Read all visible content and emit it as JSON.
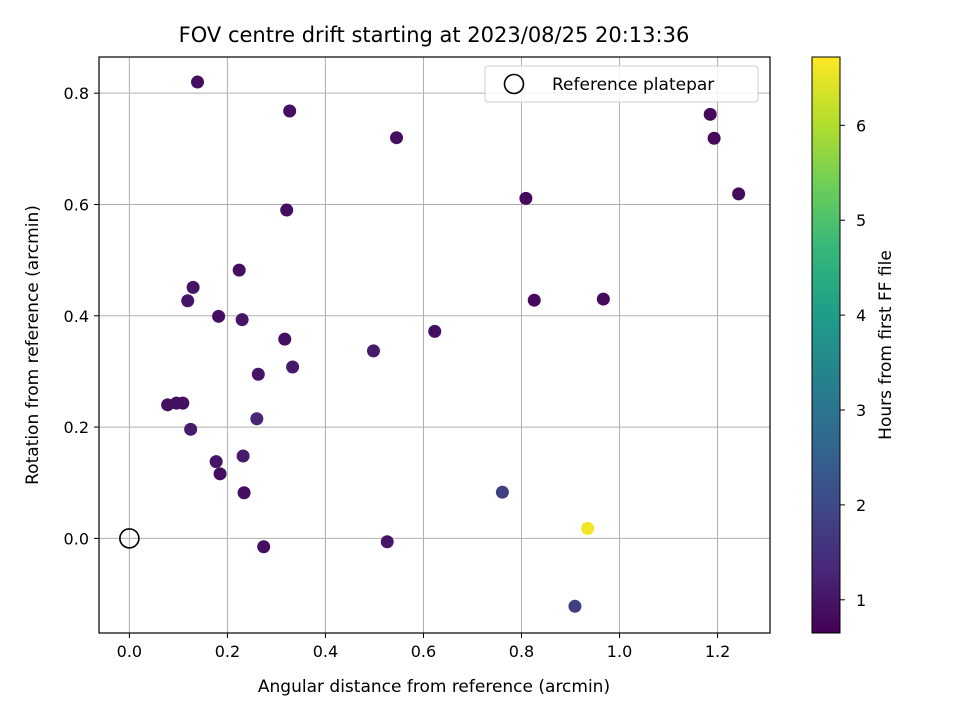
{
  "chart_data": {
    "type": "scatter",
    "title": "FOV centre drift starting at 2023/08/25 20:13:36",
    "xlabel": "Angular distance from reference (arcmin)",
    "ylabel": "Rotation from reference (arcmin)",
    "xlim": [
      -0.062,
      1.307
    ],
    "ylim": [
      -0.17,
      0.865
    ],
    "x_ticks": [
      0.0,
      0.2,
      0.4,
      0.6,
      0.8,
      1.0,
      1.2
    ],
    "x_tick_labels": [
      "0.0",
      "0.2",
      "0.4",
      "0.6",
      "0.8",
      "1.0",
      "1.2"
    ],
    "y_ticks": [
      0.0,
      0.2,
      0.4,
      0.6,
      0.8
    ],
    "y_tick_labels": [
      "0.0",
      "0.2",
      "0.4",
      "0.6",
      "0.8"
    ],
    "grid": true,
    "legend": {
      "placement": "top-right",
      "entries": [
        {
          "label": "Reference platepar",
          "marker": "open-circle"
        }
      ]
    },
    "reference_point": {
      "x": 0.0,
      "y": 0.0
    },
    "colorbar": {
      "label": "Hours from first FF file",
      "colormap": "viridis",
      "range": [
        0.65,
        6.72
      ],
      "ticks": [
        1,
        2,
        3,
        4,
        5,
        6
      ],
      "tick_labels": [
        "1",
        "2",
        "3",
        "4",
        "5",
        "6"
      ],
      "colors": [
        "#440154",
        "#482878",
        "#3e4989",
        "#31688e",
        "#26828e",
        "#1f9e89",
        "#35b779",
        "#6ece58",
        "#b5de2b",
        "#fde725"
      ]
    },
    "points": [
      {
        "x": 0.139,
        "y": 0.82,
        "hours": 0.9
      },
      {
        "x": 0.327,
        "y": 0.768,
        "hours": 0.9
      },
      {
        "x": 0.545,
        "y": 0.72,
        "hours": 0.9
      },
      {
        "x": 1.185,
        "y": 0.762,
        "hours": 0.8
      },
      {
        "x": 1.193,
        "y": 0.719,
        "hours": 0.8
      },
      {
        "x": 1.243,
        "y": 0.619,
        "hours": 0.8
      },
      {
        "x": 0.321,
        "y": 0.59,
        "hours": 0.9
      },
      {
        "x": 0.809,
        "y": 0.611,
        "hours": 0.8
      },
      {
        "x": 0.224,
        "y": 0.482,
        "hours": 0.9
      },
      {
        "x": 0.13,
        "y": 0.451,
        "hours": 1.0
      },
      {
        "x": 0.119,
        "y": 0.427,
        "hours": 1.0
      },
      {
        "x": 0.826,
        "y": 0.428,
        "hours": 0.8
      },
      {
        "x": 0.967,
        "y": 0.43,
        "hours": 0.8
      },
      {
        "x": 0.182,
        "y": 0.399,
        "hours": 0.9
      },
      {
        "x": 0.23,
        "y": 0.393,
        "hours": 1.0
      },
      {
        "x": 0.623,
        "y": 0.372,
        "hours": 0.9
      },
      {
        "x": 0.317,
        "y": 0.358,
        "hours": 0.9
      },
      {
        "x": 0.498,
        "y": 0.337,
        "hours": 1.1
      },
      {
        "x": 0.333,
        "y": 0.308,
        "hours": 1.1
      },
      {
        "x": 0.263,
        "y": 0.295,
        "hours": 1.0
      },
      {
        "x": 0.078,
        "y": 0.24,
        "hours": 0.9
      },
      {
        "x": 0.096,
        "y": 0.243,
        "hours": 0.9
      },
      {
        "x": 0.109,
        "y": 0.243,
        "hours": 0.9
      },
      {
        "x": 0.26,
        "y": 0.215,
        "hours": 1.3
      },
      {
        "x": 0.125,
        "y": 0.196,
        "hours": 1.1
      },
      {
        "x": 0.232,
        "y": 0.148,
        "hours": 1.1
      },
      {
        "x": 0.177,
        "y": 0.138,
        "hours": 1.0
      },
      {
        "x": 0.185,
        "y": 0.116,
        "hours": 0.9
      },
      {
        "x": 0.234,
        "y": 0.082,
        "hours": 0.9
      },
      {
        "x": 0.761,
        "y": 0.083,
        "hours": 1.8
      },
      {
        "x": 0.526,
        "y": -0.006,
        "hours": 1.0
      },
      {
        "x": 0.274,
        "y": -0.015,
        "hours": 0.9
      },
      {
        "x": 0.909,
        "y": -0.122,
        "hours": 1.8
      },
      {
        "x": 0.935,
        "y": 0.018,
        "hours": 6.6
      }
    ]
  }
}
